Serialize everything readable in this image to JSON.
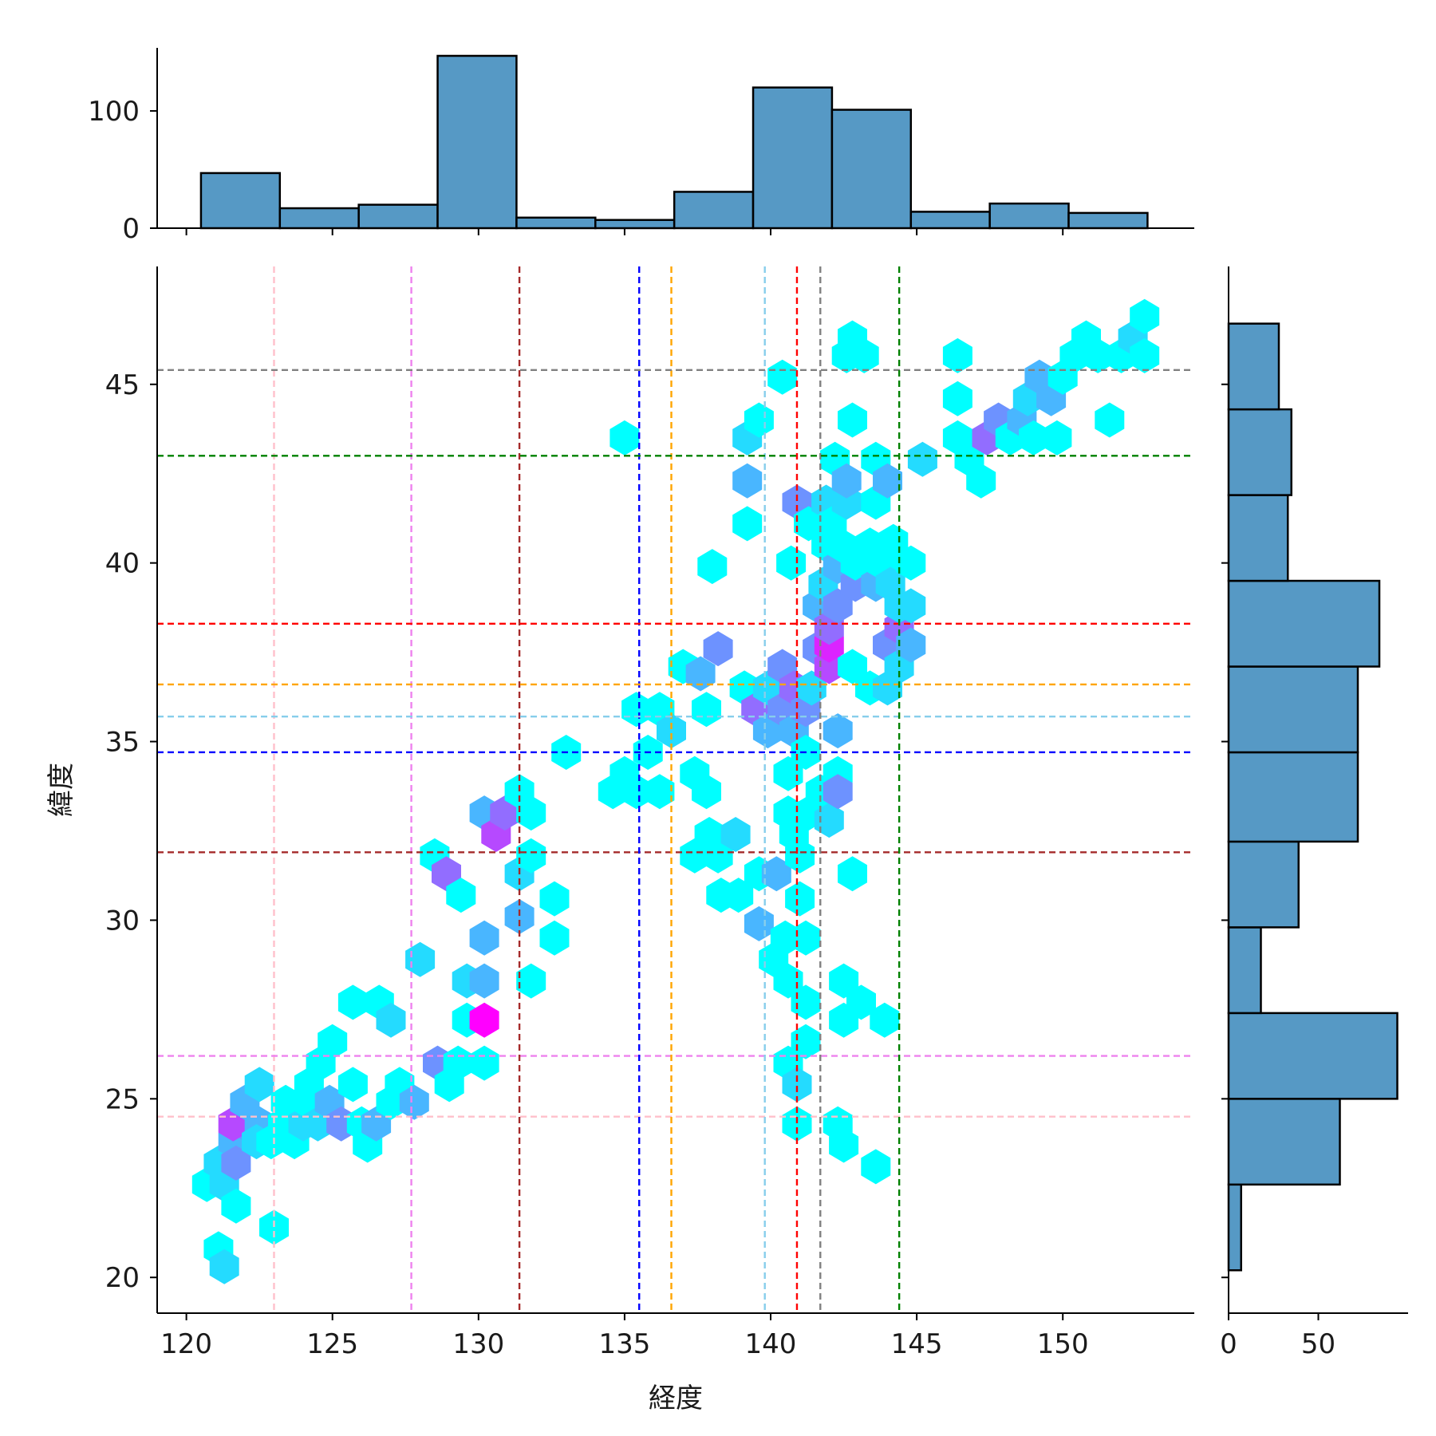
{
  "chart_data": {
    "type": "jointplot-hexbin",
    "xlabel": "経度",
    "ylabel": "緯度",
    "xlim": [
      119,
      154.5
    ],
    "ylim": [
      19,
      48.3
    ],
    "xticks": [
      120,
      125,
      130,
      135,
      140,
      145,
      150
    ],
    "yticks": [
      20,
      25,
      30,
      35,
      40,
      45
    ],
    "hexbin": {
      "colormap": "cool",
      "count_min": 1,
      "count_max": 8,
      "cells": [
        [
          120.7,
          22.6,
          1
        ],
        [
          121.1,
          23.2,
          2
        ],
        [
          121.6,
          23.8,
          3
        ],
        [
          122.0,
          24.3,
          4
        ],
        [
          121.6,
          24.3,
          6
        ],
        [
          122.5,
          24.3,
          3
        ],
        [
          121.1,
          20.8,
          1
        ],
        [
          121.3,
          20.3,
          2
        ],
        [
          121.3,
          22.6,
          2
        ],
        [
          121.7,
          22.0,
          1
        ],
        [
          121.7,
          23.2,
          4
        ],
        [
          122.0,
          24.9,
          3
        ],
        [
          122.4,
          23.8,
          2
        ],
        [
          122.5,
          25.4,
          2
        ],
        [
          122.9,
          23.8,
          1
        ],
        [
          123.0,
          21.4,
          1
        ],
        [
          123.3,
          24.3,
          1
        ],
        [
          123.4,
          24.9,
          1
        ],
        [
          123.7,
          23.8,
          1
        ],
        [
          124.0,
          24.3,
          2
        ],
        [
          124.2,
          24.9,
          1
        ],
        [
          124.2,
          25.4,
          1
        ],
        [
          124.5,
          24.3,
          2
        ],
        [
          124.6,
          26.0,
          1
        ],
        [
          124.9,
          24.9,
          3
        ],
        [
          125.0,
          26.6,
          1
        ],
        [
          125.3,
          24.3,
          4
        ],
        [
          125.7,
          25.4,
          1
        ],
        [
          125.7,
          27.7,
          1
        ],
        [
          126.0,
          24.3,
          1
        ],
        [
          126.2,
          23.7,
          1
        ],
        [
          126.5,
          24.3,
          3
        ],
        [
          126.6,
          27.7,
          1
        ],
        [
          127.0,
          24.9,
          1
        ],
        [
          127.0,
          27.2,
          2
        ],
        [
          127.3,
          25.4,
          1
        ],
        [
          127.8,
          24.9,
          3
        ],
        [
          128.0,
          28.9,
          2
        ],
        [
          128.5,
          31.8,
          1
        ],
        [
          128.6,
          26.0,
          4
        ],
        [
          128.9,
          31.3,
          5
        ],
        [
          129.0,
          25.4,
          1
        ],
        [
          129.3,
          26.0,
          1
        ],
        [
          129.4,
          30.7,
          1
        ],
        [
          129.6,
          27.2,
          1
        ],
        [
          129.6,
          28.3,
          2
        ],
        [
          130.2,
          26.0,
          1
        ],
        [
          130.2,
          27.2,
          8
        ],
        [
          130.2,
          28.3,
          3
        ],
        [
          130.2,
          29.5,
          3
        ],
        [
          130.2,
          33.0,
          3
        ],
        [
          130.6,
          32.4,
          6
        ],
        [
          130.9,
          33.0,
          5
        ],
        [
          131.4,
          30.1,
          3
        ],
        [
          131.4,
          31.3,
          2
        ],
        [
          131.4,
          33.6,
          1
        ],
        [
          131.8,
          28.3,
          1
        ],
        [
          131.8,
          31.8,
          1
        ],
        [
          131.8,
          33.0,
          1
        ],
        [
          132.6,
          29.5,
          1
        ],
        [
          132.6,
          30.6,
          1
        ],
        [
          133.0,
          34.7,
          1
        ],
        [
          134.6,
          33.6,
          1
        ],
        [
          135.0,
          34.1,
          1
        ],
        [
          135.0,
          43.5,
          1
        ],
        [
          135.4,
          33.6,
          1
        ],
        [
          135.4,
          35.9,
          1
        ],
        [
          135.8,
          34.7,
          1
        ],
        [
          136.2,
          33.6,
          1
        ],
        [
          136.2,
          35.9,
          1
        ],
        [
          136.6,
          35.3,
          2
        ],
        [
          137.0,
          37.1,
          1
        ],
        [
          137.4,
          34.1,
          1
        ],
        [
          137.4,
          31.8,
          1
        ],
        [
          137.6,
          36.9,
          3
        ],
        [
          137.8,
          33.6,
          1
        ],
        [
          137.8,
          35.9,
          1
        ],
        [
          137.9,
          32.4,
          1
        ],
        [
          138.0,
          39.9,
          1
        ],
        [
          138.2,
          31.8,
          1
        ],
        [
          138.2,
          37.6,
          4
        ],
        [
          138.3,
          30.7,
          1
        ],
        [
          138.8,
          32.4,
          2
        ],
        [
          138.9,
          30.7,
          1
        ],
        [
          139.1,
          36.5,
          1
        ],
        [
          139.2,
          42.3,
          3
        ],
        [
          139.2,
          43.5,
          2
        ],
        [
          139.2,
          41.1,
          1
        ],
        [
          139.5,
          35.9,
          5
        ],
        [
          139.6,
          44.0,
          1
        ],
        [
          139.6,
          29.9,
          3
        ],
        [
          139.6,
          31.3,
          1
        ],
        [
          139.9,
          35.3,
          3
        ],
        [
          139.9,
          36.5,
          2
        ],
        [
          140.1,
          28.9,
          1
        ],
        [
          140.2,
          31.3,
          3
        ],
        [
          140.4,
          35.9,
          4
        ],
        [
          140.4,
          37.1,
          4
        ],
        [
          140.4,
          45.2,
          1
        ],
        [
          140.5,
          29.5,
          1
        ],
        [
          140.6,
          28.3,
          1
        ],
        [
          140.6,
          34.1,
          1
        ],
        [
          140.6,
          33.0,
          1
        ],
        [
          140.6,
          26.0,
          1
        ],
        [
          140.7,
          40.0,
          1
        ],
        [
          140.8,
          36.5,
          5
        ],
        [
          140.8,
          35.3,
          3
        ],
        [
          140.8,
          32.4,
          1
        ],
        [
          140.9,
          24.3,
          1
        ],
        [
          140.9,
          25.4,
          2
        ],
        [
          140.9,
          41.7,
          4
        ],
        [
          141.0,
          30.6,
          1
        ],
        [
          141.0,
          31.8,
          1
        ],
        [
          141.2,
          27.7,
          1
        ],
        [
          141.2,
          29.5,
          1
        ],
        [
          141.2,
          35.9,
          4
        ],
        [
          141.2,
          34.7,
          1
        ],
        [
          141.2,
          26.6,
          1
        ],
        [
          141.3,
          33.0,
          1
        ],
        [
          141.3,
          41.1,
          1
        ],
        [
          141.4,
          36.5,
          2
        ],
        [
          141.6,
          37.6,
          4
        ],
        [
          141.6,
          38.8,
          3
        ],
        [
          141.7,
          33.6,
          1
        ],
        [
          141.8,
          39.4,
          2
        ],
        [
          141.9,
          40.5,
          1
        ],
        [
          141.9,
          41.7,
          2
        ],
        [
          142.0,
          32.8,
          2
        ],
        [
          142.0,
          37.1,
          6
        ],
        [
          142.0,
          37.7,
          7
        ],
        [
          142.0,
          38.2,
          5
        ],
        [
          142.1,
          41.1,
          1
        ],
        [
          142.2,
          42.9,
          1
        ],
        [
          142.3,
          24.3,
          1
        ],
        [
          142.3,
          35.3,
          3
        ],
        [
          142.3,
          34.1,
          1
        ],
        [
          142.3,
          33.6,
          4
        ],
        [
          142.3,
          38.8,
          4
        ],
        [
          142.3,
          39.9,
          3
        ],
        [
          142.4,
          40.5,
          1
        ],
        [
          142.5,
          23.7,
          1
        ],
        [
          142.5,
          27.2,
          1
        ],
        [
          142.5,
          28.3,
          1
        ],
        [
          142.6,
          41.7,
          2
        ],
        [
          142.6,
          42.3,
          3
        ],
        [
          142.6,
          45.8,
          1
        ],
        [
          142.8,
          46.3,
          1
        ],
        [
          142.8,
          44.0,
          1
        ],
        [
          142.8,
          31.3,
          1
        ],
        [
          142.8,
          37.1,
          1
        ],
        [
          142.9,
          39.4,
          4
        ],
        [
          142.9,
          40.0,
          1
        ],
        [
          143.1,
          27.7,
          1
        ],
        [
          143.2,
          45.8,
          1
        ],
        [
          143.4,
          36.5,
          1
        ],
        [
          143.4,
          40.5,
          1
        ],
        [
          143.6,
          23.1,
          1
        ],
        [
          143.6,
          39.4,
          3
        ],
        [
          143.6,
          41.7,
          1
        ],
        [
          143.6,
          42.9,
          1
        ],
        [
          143.8,
          40.0,
          1
        ],
        [
          143.9,
          27.2,
          1
        ],
        [
          144.0,
          36.5,
          2
        ],
        [
          144.0,
          37.7,
          4
        ],
        [
          144.0,
          42.3,
          3
        ],
        [
          144.1,
          39.4,
          2
        ],
        [
          144.2,
          40.6,
          1
        ],
        [
          144.4,
          38.2,
          5
        ],
        [
          144.4,
          37.1,
          2
        ],
        [
          144.4,
          38.8,
          2
        ],
        [
          144.8,
          37.7,
          3
        ],
        [
          144.8,
          38.8,
          2
        ],
        [
          144.8,
          40.0,
          1
        ],
        [
          145.2,
          42.9,
          2
        ],
        [
          146.4,
          43.5,
          1
        ],
        [
          146.4,
          44.6,
          1
        ],
        [
          146.4,
          45.8,
          1
        ],
        [
          146.8,
          42.9,
          1
        ],
        [
          147.2,
          42.3,
          1
        ],
        [
          147.4,
          43.5,
          5
        ],
        [
          147.8,
          44.0,
          4
        ],
        [
          148.2,
          43.5,
          1
        ],
        [
          148.6,
          44.0,
          3
        ],
        [
          148.8,
          44.6,
          2
        ],
        [
          149.0,
          43.5,
          1
        ],
        [
          149.2,
          45.2,
          3
        ],
        [
          149.6,
          44.6,
          3
        ],
        [
          149.8,
          43.5,
          1
        ],
        [
          150.0,
          45.2,
          1
        ],
        [
          150.4,
          45.8,
          1
        ],
        [
          150.8,
          46.3,
          1
        ],
        [
          151.2,
          45.8,
          1
        ],
        [
          151.6,
          44.0,
          1
        ],
        [
          152.0,
          45.8,
          1
        ],
        [
          152.4,
          46.3,
          2
        ],
        [
          152.8,
          45.8,
          1
        ],
        [
          152.8,
          46.9,
          1
        ]
      ]
    },
    "top_histogram": {
      "orientation": "vertical",
      "ylim": [
        0,
        147
      ],
      "yticks": [
        0,
        100
      ],
      "bins": [
        {
          "x0": 120.5,
          "x1": 123.2,
          "count": 47
        },
        {
          "x0": 123.2,
          "x1": 125.9,
          "count": 17
        },
        {
          "x0": 125.9,
          "x1": 128.6,
          "count": 20
        },
        {
          "x0": 128.6,
          "x1": 131.3,
          "count": 147
        },
        {
          "x0": 131.3,
          "x1": 134.0,
          "count": 9
        },
        {
          "x0": 134.0,
          "x1": 136.7,
          "count": 7
        },
        {
          "x0": 136.7,
          "x1": 139.4,
          "count": 31
        },
        {
          "x0": 139.4,
          "x1": 142.1,
          "count": 120
        },
        {
          "x0": 142.1,
          "x1": 144.8,
          "count": 101
        },
        {
          "x0": 144.8,
          "x1": 147.5,
          "count": 14
        },
        {
          "x0": 147.5,
          "x1": 150.2,
          "count": 21
        },
        {
          "x0": 150.2,
          "x1": 152.9,
          "count": 13
        }
      ]
    },
    "right_histogram": {
      "orientation": "horizontal",
      "xlim": [
        0,
        100
      ],
      "xticks": [
        0,
        50
      ],
      "bins": [
        {
          "y0": 20.2,
          "y1": 22.6,
          "count": 7
        },
        {
          "y0": 22.6,
          "y1": 25.0,
          "count": 62
        },
        {
          "y0": 25.0,
          "y1": 27.4,
          "count": 94
        },
        {
          "y0": 27.4,
          "y1": 29.8,
          "count": 18
        },
        {
          "y0": 29.8,
          "y1": 32.2,
          "count": 39
        },
        {
          "y0": 32.2,
          "y1": 34.7,
          "count": 72
        },
        {
          "y0": 34.7,
          "y1": 37.1,
          "count": 72
        },
        {
          "y0": 37.1,
          "y1": 39.5,
          "count": 84
        },
        {
          "y0": 39.5,
          "y1": 41.9,
          "count": 33
        },
        {
          "y0": 41.9,
          "y1": 44.3,
          "count": 35
        },
        {
          "y0": 44.3,
          "y1": 46.7,
          "count": 28
        }
      ]
    },
    "reference_lines": [
      {
        "color": "#ffc0cb",
        "x": 123.0,
        "y": 24.5
      },
      {
        "color": "#ee82ee",
        "x": 127.7,
        "y": 26.2
      },
      {
        "color": "#a52a2a",
        "x": 131.4,
        "y": 31.9
      },
      {
        "color": "#0000ff",
        "x": 135.5,
        "y": 34.7
      },
      {
        "color": "#ffa500",
        "x": 136.6,
        "y": 36.6
      },
      {
        "color": "#87ceeb",
        "x": 139.8,
        "y": 35.7
      },
      {
        "color": "#ff0000",
        "x": 140.9,
        "y": 38.3
      },
      {
        "color": "#808080",
        "x": 141.7,
        "y": 45.4
      },
      {
        "color": "#008000",
        "x": 144.4,
        "y": 43.0
      }
    ],
    "bar_color": "#5699c5"
  }
}
